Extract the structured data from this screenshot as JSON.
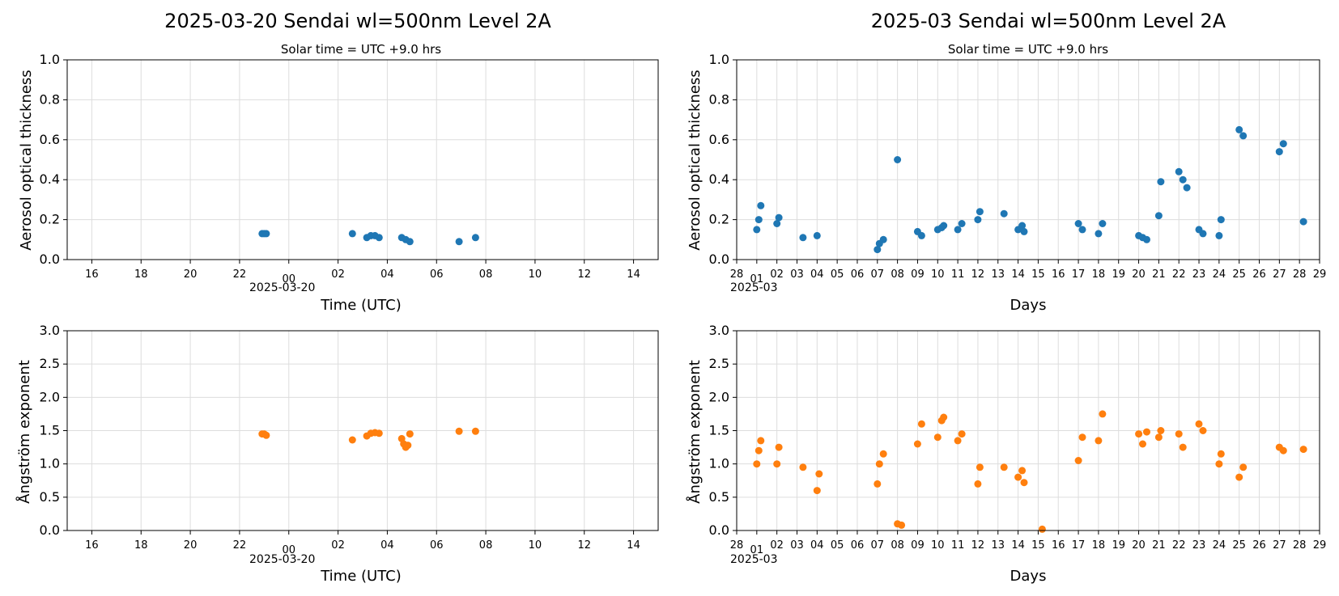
{
  "colors": {
    "aot": "#1f77b4",
    "angstrom": "#ff7f0e",
    "grid": "#dddddd",
    "axis": "#000000"
  },
  "chart_data": [
    {
      "id": "daily_aot",
      "type": "scatter",
      "title": "2025-03-20  Sendai  wl=500nm  Level 2A",
      "subtitle": "Solar time = UTC +9.0 hrs",
      "xlabel": "Time (UTC)",
      "ylabel": "Aerosol optical thickness",
      "xlim": [
        "2025-03-19T15:00",
        "2025-03-20T15:00"
      ],
      "ylim": [
        0,
        1.0
      ],
      "yticks": [
        "0.0",
        "0.2",
        "0.4",
        "0.6",
        "0.8",
        "1.0"
      ],
      "xticks": [
        "16",
        "18",
        "20",
        "22",
        "00",
        "02",
        "04",
        "06",
        "08",
        "10",
        "12",
        "14"
      ],
      "x_date_label": "2025-03-20",
      "grid": true,
      "series": [
        {
          "x": [
            "22:55",
            "23:00",
            "23:05",
            "02:35",
            "03:10",
            "03:20",
            "03:30",
            "03:40",
            "04:35",
            "04:45",
            "04:55",
            "06:55",
            "07:35"
          ],
          "y": [
            0.13,
            0.13,
            0.13,
            0.13,
            0.11,
            0.12,
            0.12,
            0.11,
            0.11,
            0.1,
            0.09,
            0.09,
            0.11
          ]
        }
      ]
    },
    {
      "id": "monthly_aot",
      "type": "scatter",
      "title": "2025-03  Sendai  wl=500nm  Level 2A",
      "subtitle": "Solar time = UTC +9.0 hrs",
      "xlabel": "Days",
      "ylabel": "Aerosol optical thickness",
      "xlim": [
        "2025-02-28",
        "2025-03-29"
      ],
      "ylim": [
        0,
        1.0
      ],
      "yticks": [
        "0.0",
        "0.2",
        "0.4",
        "0.6",
        "0.8",
        "1.0"
      ],
      "xticks": [
        "28",
        "01",
        "02",
        "03",
        "04",
        "05",
        "06",
        "07",
        "08",
        "09",
        "10",
        "11",
        "12",
        "13",
        "14",
        "15",
        "16",
        "17",
        "18",
        "19",
        "20",
        "21",
        "22",
        "23",
        "24",
        "25",
        "26",
        "27",
        "28",
        "29"
      ],
      "x_date_label": "2025-03",
      "grid": true,
      "series": [
        {
          "x": [
            1.0,
            1.1,
            1.2,
            2.0,
            2.1,
            3.3,
            4.0,
            7.0,
            7.1,
            7.3,
            8.0,
            9.0,
            9.2,
            10.0,
            10.2,
            10.3,
            11.0,
            11.2,
            12.0,
            12.1,
            13.3,
            14.0,
            14.2,
            14.3,
            17.0,
            17.2,
            18.0,
            18.2,
            20.0,
            20.2,
            20.4,
            21.0,
            21.1,
            22.0,
            22.2,
            22.4,
            23.0,
            23.2,
            24.0,
            24.1,
            25.0,
            25.2,
            27.0,
            27.2,
            28.2
          ],
          "y": [
            0.15,
            0.2,
            0.27,
            0.18,
            0.21,
            0.11,
            0.12,
            0.05,
            0.08,
            0.1,
            0.5,
            0.14,
            0.12,
            0.15,
            0.16,
            0.17,
            0.15,
            0.18,
            0.2,
            0.24,
            0.23,
            0.15,
            0.17,
            0.14,
            0.18,
            0.15,
            0.13,
            0.18,
            0.12,
            0.11,
            0.1,
            0.22,
            0.39,
            0.44,
            0.4,
            0.36,
            0.15,
            0.13,
            0.12,
            0.2,
            0.65,
            0.62,
            0.54,
            0.58,
            0.19
          ]
        }
      ]
    },
    {
      "id": "daily_angstrom",
      "type": "scatter",
      "title": "",
      "xlabel": "Time (UTC)",
      "ylabel": "Ångström exponent",
      "xlim": [
        "2025-03-19T15:00",
        "2025-03-20T15:00"
      ],
      "ylim": [
        0,
        3.0
      ],
      "yticks": [
        "0.0",
        "0.5",
        "1.0",
        "1.5",
        "2.0",
        "2.5",
        "3.0"
      ],
      "xticks": [
        "16",
        "18",
        "20",
        "22",
        "00",
        "02",
        "04",
        "06",
        "08",
        "10",
        "12",
        "14"
      ],
      "x_date_label": "2025-03-20",
      "grid": true,
      "series": [
        {
          "x": [
            "22:55",
            "23:00",
            "23:05",
            "02:35",
            "03:10",
            "03:20",
            "03:30",
            "03:40",
            "04:35",
            "04:40",
            "04:45",
            "04:50",
            "04:55",
            "06:55",
            "07:35"
          ],
          "y": [
            1.45,
            1.45,
            1.43,
            1.36,
            1.42,
            1.46,
            1.47,
            1.46,
            1.38,
            1.3,
            1.25,
            1.28,
            1.45,
            1.49,
            1.49
          ]
        }
      ]
    },
    {
      "id": "monthly_angstrom",
      "type": "scatter",
      "title": "",
      "xlabel": "Days",
      "ylabel": "Ångström exponent",
      "xlim": [
        "2025-02-28",
        "2025-03-29"
      ],
      "ylim": [
        0,
        3.0
      ],
      "yticks": [
        "0.0",
        "0.5",
        "1.0",
        "1.5",
        "2.0",
        "2.5",
        "3.0"
      ],
      "xticks": [
        "28",
        "01",
        "02",
        "03",
        "04",
        "05",
        "06",
        "07",
        "08",
        "09",
        "10",
        "11",
        "12",
        "13",
        "14",
        "15",
        "16",
        "17",
        "18",
        "19",
        "20",
        "21",
        "22",
        "23",
        "24",
        "25",
        "26",
        "27",
        "28",
        "29"
      ],
      "x_date_label": "2025-03",
      "grid": true,
      "series": [
        {
          "x": [
            1.0,
            1.1,
            1.2,
            2.0,
            2.1,
            3.3,
            4.0,
            4.1,
            7.0,
            7.1,
            7.3,
            8.0,
            8.2,
            9.0,
            9.2,
            10.0,
            10.2,
            10.3,
            11.0,
            11.2,
            12.0,
            12.1,
            13.3,
            14.0,
            14.2,
            14.3,
            15.2,
            17.0,
            17.2,
            18.0,
            18.2,
            20.0,
            20.2,
            20.4,
            21.0,
            21.1,
            22.0,
            22.2,
            23.0,
            23.2,
            24.0,
            24.1,
            25.0,
            25.2,
            27.0,
            27.2,
            28.2
          ],
          "y": [
            1.0,
            1.2,
            1.35,
            1.0,
            1.25,
            0.95,
            0.6,
            0.85,
            0.7,
            1.0,
            1.15,
            0.1,
            0.08,
            1.3,
            1.6,
            1.4,
            1.65,
            1.7,
            1.35,
            1.45,
            0.7,
            0.95,
            0.95,
            0.8,
            0.9,
            0.72,
            0.02,
            1.05,
            1.4,
            1.35,
            1.75,
            1.45,
            1.3,
            1.48,
            1.4,
            1.5,
            1.45,
            1.25,
            1.6,
            1.5,
            1.0,
            1.15,
            0.8,
            0.95,
            1.25,
            1.2,
            1.22
          ]
        }
      ]
    }
  ]
}
